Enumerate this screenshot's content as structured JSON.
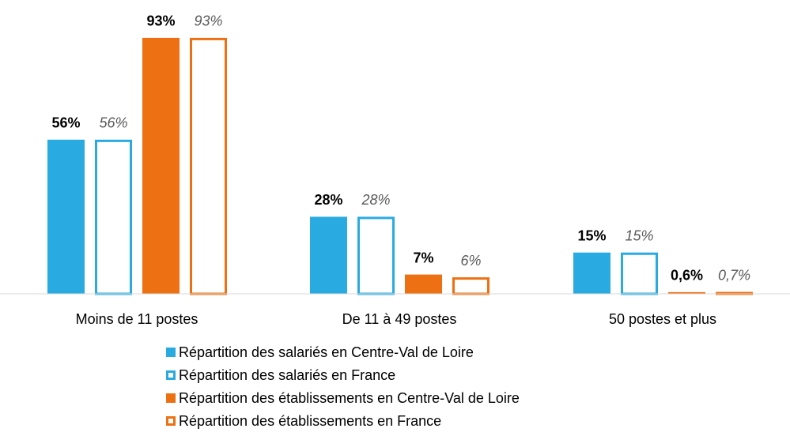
{
  "chart_data": {
    "type": "bar",
    "categories": [
      "Moins de 11 postes",
      "De 11 à 49 postes",
      "50 postes et plus"
    ],
    "series": [
      {
        "name": "Répartition des salariés en Centre-Val de Loire",
        "color": "#29abe2",
        "style": "filled",
        "values": [
          56,
          28,
          15
        ],
        "value_labels": [
          "56%",
          "28%",
          "15%"
        ]
      },
      {
        "name": "Répartition des salariés en France",
        "color": "#29abe2",
        "style": "outline",
        "values": [
          56,
          28,
          15
        ],
        "value_labels": [
          "56%",
          "28%",
          "15%"
        ]
      },
      {
        "name": "Répartition des établissements en Centre-Val de Loire",
        "color": "#ed7012",
        "style": "filled",
        "values": [
          93,
          7,
          0.6
        ],
        "value_labels": [
          "93%",
          "7%",
          "0,6%"
        ]
      },
      {
        "name": "Répartition des établissements en France",
        "color": "#ed7012",
        "style": "outline",
        "values": [
          93,
          6,
          0.7
        ],
        "value_labels": [
          "93%",
          "6%",
          "0,7%"
        ]
      }
    ]
  }
}
